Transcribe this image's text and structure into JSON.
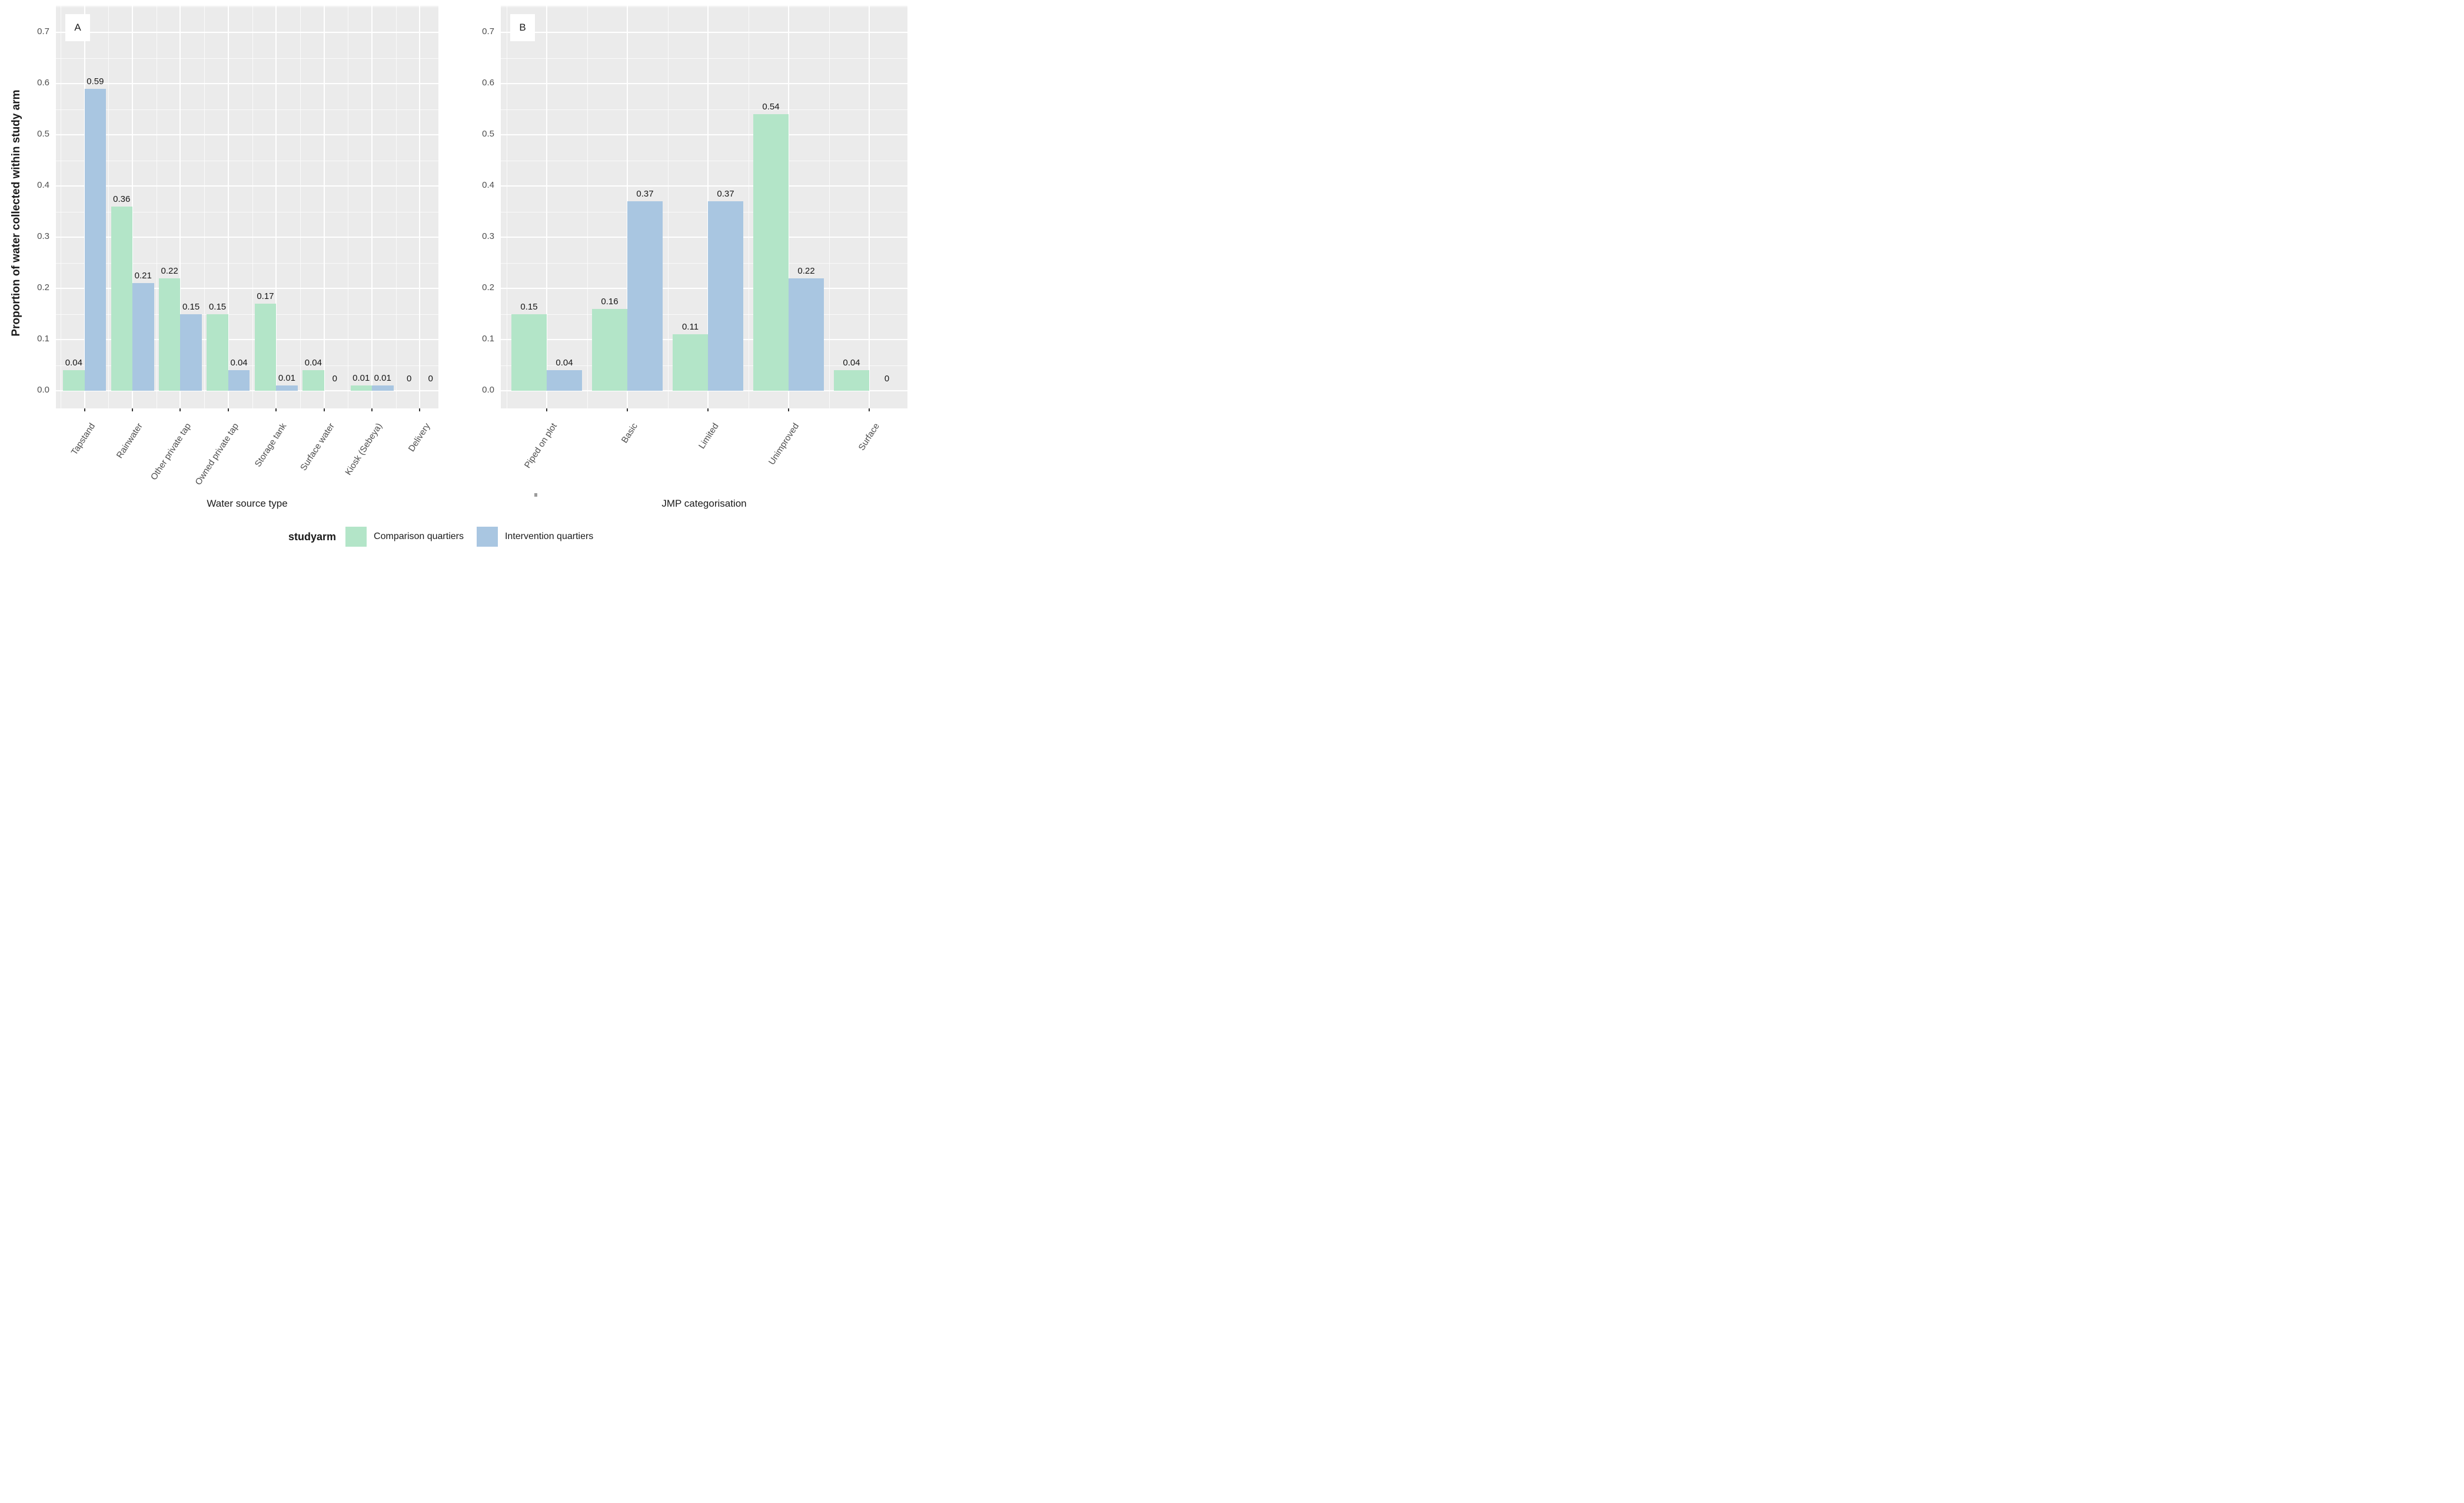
{
  "figure": {
    "ylabel": "Proportion of water collected within study arm",
    "panel_bg": "#ebebeb",
    "grid_color": "#ffffff",
    "stray_mark": ".",
    "legend": {
      "title": "studyarm",
      "entries": [
        {
          "label": "Comparison quartiers",
          "color": "#b3e5c8"
        },
        {
          "label": "Intervention quartiers",
          "color": "#a9c6e1"
        }
      ]
    }
  },
  "chart_data": [
    {
      "type": "bar",
      "panel_tag": "A",
      "xlabel": "Water source type",
      "ylabel": "Proportion of water collected within study arm",
      "categories": [
        "Tapstand",
        "Rainwater",
        "Other private tap",
        "Owned private tap",
        "Storage tank",
        "Surface water",
        "Kiosk (Sebeya)",
        "Delivery"
      ],
      "series": [
        {
          "name": "Comparison quartiers",
          "color": "#b3e5c8",
          "values": [
            0.04,
            0.36,
            0.22,
            0.15,
            0.17,
            0.04,
            0.01,
            0
          ],
          "labels": [
            "0.04",
            "0.36",
            "0.22",
            "0.15",
            "0.17",
            "0.04",
            "0.01",
            "0"
          ]
        },
        {
          "name": "Intervention quartiers",
          "color": "#a9c6e1",
          "values": [
            0.59,
            0.21,
            0.15,
            0.04,
            0.01,
            0,
            0.01,
            0
          ],
          "labels": [
            "0.59",
            "0.21",
            "0.15",
            "0.04",
            "0.01",
            "0",
            "0.01",
            "0"
          ]
        }
      ],
      "yticks": [
        "0.0",
        "0.1",
        "0.2",
        "0.3",
        "0.4",
        "0.5",
        "0.6",
        "0.7"
      ],
      "ylim": [
        0,
        0.75
      ],
      "grid": "white major+minor on gray panel",
      "legend_position": "bottom"
    },
    {
      "type": "bar",
      "panel_tag": "B",
      "xlabel": "JMP categorisation",
      "ylabel": "Proportion of water collected within study arm",
      "categories": [
        "Piped on plot",
        "Basic",
        "Limited",
        "Unimproved",
        "Surface"
      ],
      "series": [
        {
          "name": "Comparison quartiers",
          "color": "#b3e5c8",
          "values": [
            0.15,
            0.16,
            0.11,
            0.54,
            0.04
          ],
          "labels": [
            "0.15",
            "0.16",
            "0.11",
            "0.54",
            "0.04"
          ]
        },
        {
          "name": "Intervention quartiers",
          "color": "#a9c6e1",
          "values": [
            0.04,
            0.37,
            0.37,
            0.22,
            0
          ],
          "labels": [
            "0.04",
            "0.37",
            "0.37",
            "0.22",
            "0"
          ]
        }
      ],
      "yticks": [
        "0.0",
        "0.1",
        "0.2",
        "0.3",
        "0.4",
        "0.5",
        "0.6",
        "0.7"
      ],
      "ylim": [
        0,
        0.75
      ],
      "grid": "white major+minor on gray panel",
      "legend_position": "bottom"
    }
  ]
}
